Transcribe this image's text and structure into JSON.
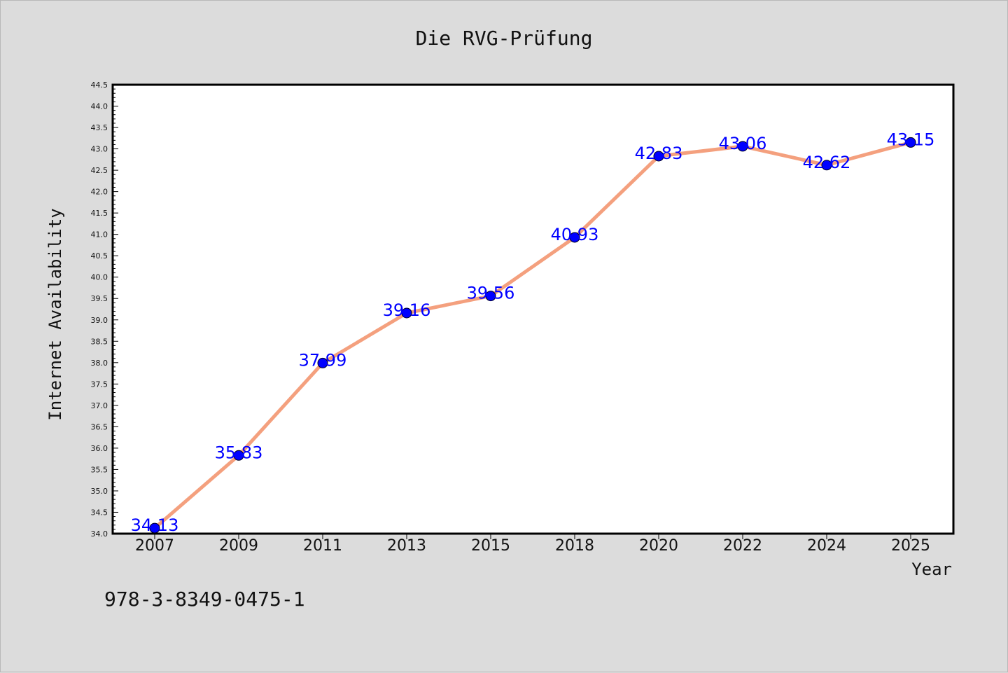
{
  "chart_data": {
    "type": "line",
    "title": "Die RVG-Prüfung",
    "xlabel": "Year",
    "ylabel": "Internet Availability",
    "categories": [
      "2007",
      "2009",
      "2011",
      "2013",
      "2015",
      "2018",
      "2020",
      "2022",
      "2024",
      "2025"
    ],
    "values": [
      34.13,
      35.83,
      37.99,
      39.16,
      39.56,
      40.93,
      42.83,
      43.06,
      42.62,
      43.15
    ],
    "data_labels": [
      "34.13",
      "35.83",
      "37.99",
      "39.16",
      "39.56",
      "40.93",
      "42.83",
      "43.06",
      "42.62",
      "43.15"
    ],
    "ylim": [
      34.0,
      44.5
    ],
    "yticks": [
      "34.0",
      "34.5",
      "35.0",
      "35.5",
      "36.0",
      "36.5",
      "37.0",
      "37.5",
      "38.0",
      "38.5",
      "39.0",
      "39.5",
      "40.0",
      "40.5",
      "41.0",
      "41.5",
      "42.0",
      "42.5",
      "43.0",
      "43.5",
      "44.0",
      "44.5"
    ],
    "grid": false,
    "line_color": "#f4a07e",
    "marker_color": "#0000ff",
    "label_color": "#0000ff"
  },
  "footer": {
    "isbn": "978-3-8349-0475-1"
  }
}
